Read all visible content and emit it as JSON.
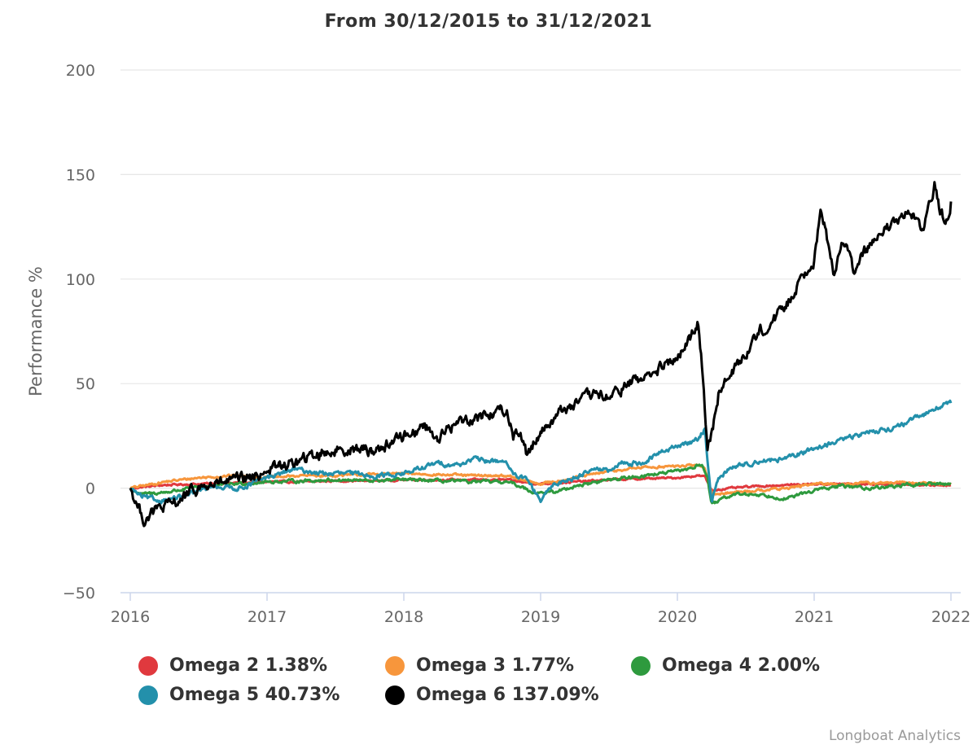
{
  "chart_data": {
    "type": "line",
    "title": "From 30/12/2015 to 31/12/2021",
    "ylabel": "Performance %",
    "xlabel": "",
    "ylim": [
      -50,
      200
    ],
    "xlim": [
      2016.0,
      2022.06
    ],
    "y_ticks": [
      "−50",
      "0",
      "50",
      "100",
      "150",
      "200"
    ],
    "y_tick_values": [
      -50,
      0,
      50,
      100,
      150,
      200
    ],
    "x_ticks": [
      "2016",
      "2017",
      "2018",
      "2019",
      "2020",
      "2021",
      "2022"
    ],
    "x_tick_values": [
      2016,
      2017,
      2018,
      2019,
      2020,
      2021,
      2022
    ],
    "grid": true,
    "legend_position": "bottom",
    "series": [
      {
        "name": "Omega 2 1.38%",
        "color": "#e0393e",
        "x": [
          2016.0,
          2016.25,
          2016.5,
          2016.75,
          2017.0,
          2017.25,
          2017.5,
          2017.75,
          2018.0,
          2018.25,
          2018.5,
          2018.75,
          2018.85,
          2019.0,
          2019.25,
          2019.5,
          2019.75,
          2020.0,
          2020.15,
          2020.2,
          2020.25,
          2020.4,
          2020.6,
          2020.8,
          2021.0,
          2021.2,
          2021.4,
          2021.6,
          2021.8,
          2022.0
        ],
        "y": [
          0,
          1.5,
          2.0,
          2.5,
          3.0,
          3.0,
          3.5,
          3.5,
          4.0,
          4.0,
          4.0,
          4.0,
          3.0,
          2.0,
          3.0,
          4.0,
          4.5,
          5.0,
          6.0,
          5.5,
          -1.0,
          0,
          1.0,
          1.5,
          2.0,
          2.0,
          2.0,
          2.0,
          1.5,
          1.4
        ]
      },
      {
        "name": "Omega 3 1.77%",
        "color": "#f7963c",
        "x": [
          2016.0,
          2016.25,
          2016.5,
          2016.75,
          2017.0,
          2017.25,
          2017.5,
          2017.75,
          2018.0,
          2018.25,
          2018.5,
          2018.75,
          2018.85,
          2019.0,
          2019.25,
          2019.5,
          2019.75,
          2020.0,
          2020.15,
          2020.2,
          2020.25,
          2020.4,
          2020.6,
          2020.8,
          2021.0,
          2021.2,
          2021.4,
          2021.6,
          2021.8,
          2022.0
        ],
        "y": [
          0,
          3.0,
          5.0,
          6.0,
          5.0,
          6.0,
          6.0,
          6.5,
          7.0,
          6.5,
          6.0,
          6.0,
          4.0,
          2.0,
          5.0,
          8.0,
          10.0,
          10.5,
          11.0,
          10.0,
          -3.0,
          -2.0,
          -1.0,
          0,
          2.0,
          2.0,
          2.5,
          2.5,
          2.5,
          1.8
        ]
      },
      {
        "name": "Omega 4 2.00%",
        "color": "#2e9a3e",
        "x": [
          2016.0,
          2016.08,
          2016.25,
          2016.5,
          2016.75,
          2017.0,
          2017.25,
          2017.5,
          2017.75,
          2018.0,
          2018.25,
          2018.5,
          2018.75,
          2018.85,
          2018.95,
          2019.1,
          2019.25,
          2019.5,
          2019.75,
          2020.0,
          2020.12,
          2020.18,
          2020.22,
          2020.25,
          2020.4,
          2020.6,
          2020.8,
          2021.0,
          2021.2,
          2021.4,
          2021.6,
          2021.8,
          2022.0
        ],
        "y": [
          0,
          -3.0,
          -2.0,
          0.5,
          2.0,
          3.0,
          3.5,
          4.0,
          3.5,
          4.0,
          3.5,
          3.0,
          3.0,
          1.0,
          -2.0,
          -2.0,
          1.0,
          4.0,
          6.0,
          8.0,
          10.0,
          11.5,
          5.0,
          -8.0,
          -3.0,
          -3.0,
          -5.0,
          -1.0,
          1.0,
          0,
          1.0,
          2.0,
          2.0
        ]
      },
      {
        "name": "Omega 5 40.73%",
        "color": "#2390ab",
        "x": [
          2016.0,
          2016.08,
          2016.2,
          2016.4,
          2016.6,
          2016.8,
          2017.0,
          2017.2,
          2017.4,
          2017.6,
          2017.8,
          2018.0,
          2018.1,
          2018.25,
          2018.4,
          2018.5,
          2018.6,
          2018.75,
          2018.8,
          2018.9,
          2019.0,
          2019.1,
          2019.25,
          2019.4,
          2019.5,
          2019.6,
          2019.75,
          2019.9,
          2020.0,
          2020.1,
          2020.15,
          2020.2,
          2020.25,
          2020.3,
          2020.4,
          2020.6,
          2020.8,
          2021.0,
          2021.2,
          2021.4,
          2021.6,
          2021.8,
          2021.9,
          2022.0
        ],
        "y": [
          0,
          -4.0,
          -6.0,
          -4.0,
          1.0,
          0,
          5.0,
          9.0,
          7.0,
          7.0,
          6.0,
          7.0,
          9.0,
          12.0,
          11.0,
          14.0,
          13.0,
          13.0,
          6.0,
          4.0,
          -6.0,
          2.0,
          5.0,
          10.0,
          8.0,
          12.0,
          12.0,
          18.0,
          20.0,
          22.0,
          24.0,
          28.0,
          -7.0,
          5.0,
          10.0,
          13.0,
          14.0,
          19.0,
          23.0,
          27.0,
          29.0,
          35.0,
          39.0,
          40.7
        ]
      },
      {
        "name": "Omega 6 137.09%",
        "color": "#000000",
        "x": [
          2016.0,
          2016.05,
          2016.1,
          2016.2,
          2016.3,
          2016.5,
          2016.7,
          2016.9,
          2017.0,
          2017.2,
          2017.4,
          2017.6,
          2017.8,
          2017.9,
          2018.0,
          2018.1,
          2018.15,
          2018.25,
          2018.4,
          2018.6,
          2018.75,
          2018.8,
          2018.85,
          2018.9,
          2018.97,
          2019.05,
          2019.15,
          2019.3,
          2019.4,
          2019.5,
          2019.6,
          2019.7,
          2019.8,
          2019.9,
          2020.0,
          2020.05,
          2020.1,
          2020.15,
          2020.18,
          2020.22,
          2020.26,
          2020.3,
          2020.4,
          2020.5,
          2020.6,
          2020.7,
          2020.8,
          2020.9,
          2021.0,
          2021.05,
          2021.1,
          2021.15,
          2021.2,
          2021.25,
          2021.3,
          2021.35,
          2021.4,
          2021.5,
          2021.6,
          2021.7,
          2021.8,
          2021.85,
          2021.88,
          2021.92,
          2021.96,
          2022.0
        ],
        "y": [
          0,
          -8.0,
          -15.0,
          -10.0,
          -8.0,
          0,
          3.0,
          5.0,
          9.0,
          12.0,
          17.0,
          19.0,
          18.0,
          22.0,
          25.0,
          28.0,
          30.0,
          24.0,
          32.0,
          35.0,
          38.0,
          25.0,
          28.0,
          15.0,
          25.0,
          30.0,
          37.0,
          42.0,
          45.0,
          43.0,
          48.0,
          52.0,
          54.0,
          58.0,
          62.0,
          66.0,
          72.0,
          80.0,
          60.0,
          20.0,
          30.0,
          45.0,
          55.0,
          65.0,
          75.0,
          80.0,
          88.0,
          100.0,
          110.0,
          132.0,
          118.0,
          102.0,
          120.0,
          112.0,
          102.0,
          112.0,
          115.0,
          122.0,
          128.0,
          132.0,
          122.0,
          138.0,
          145.0,
          132.0,
          128.0,
          137.1
        ]
      }
    ]
  },
  "legend": [
    {
      "label": "Omega 2 1.38%",
      "color": "#e0393e"
    },
    {
      "label": "Omega 3 1.77%",
      "color": "#f7963c"
    },
    {
      "label": "Omega 4 2.00%",
      "color": "#2e9a3e"
    },
    {
      "label": "Omega 5 40.73%",
      "color": "#2390ab"
    },
    {
      "label": "Omega 6 137.09%",
      "color": "#000000"
    }
  ],
  "credits": "Longboat Analytics"
}
